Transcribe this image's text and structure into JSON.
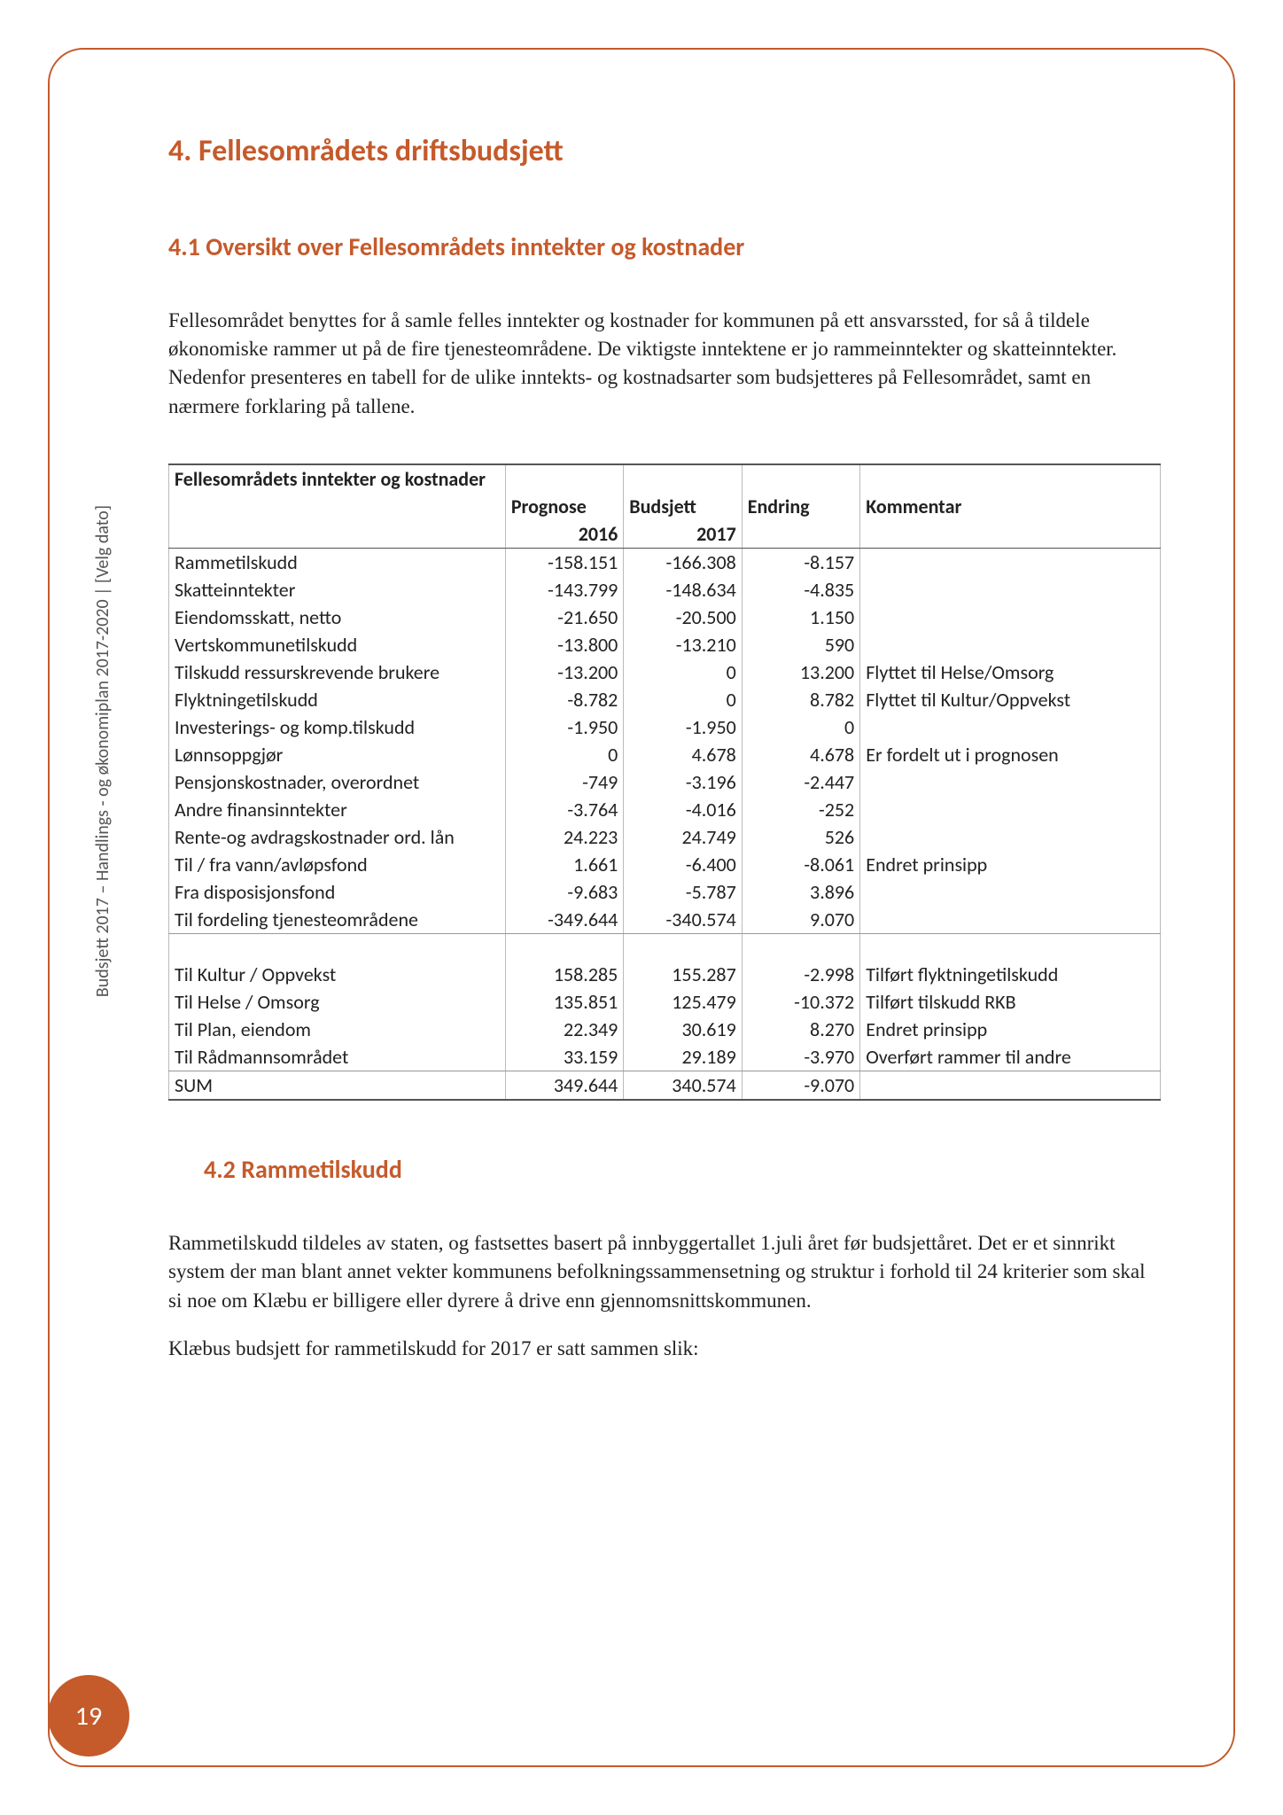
{
  "page": {
    "number": "19",
    "sidebar": "Budsjett 2017 – Handlings - og økonomiplan 2017-2020 |  [Velg dato]"
  },
  "heading1": "4. Fellesområdets driftsbudsjett",
  "heading2a": "4.1 Oversikt over Fellesområdets inntekter og kostnader",
  "para1": "Fellesområdet benyttes for å samle felles inntekter og kostnader for kommunen på ett ansvarssted, for så å tildele økonomiske rammer ut på de fire tjenesteområdene. De viktigste inntektene er jo rammeinntekter og skatteinntekter. Nedenfor presenteres en tabell for de ulike inntekts- og kostnadsarter som budsjetteres på Fellesområdet, samt en nærmere forklaring på tallene.",
  "table": {
    "title": "Fellesområdets inntekter og kostnader",
    "columns": {
      "prognose": "Prognose",
      "budsjett": "Budsjett",
      "endring": "Endring",
      "kommentar": "Kommentar"
    },
    "years": {
      "prognose": "2016",
      "budsjett": "2017"
    },
    "rows1": [
      {
        "label": "Rammetilskudd",
        "prognose": "-158.151",
        "budsjett": "-166.308",
        "endring": "-8.157",
        "kommentar": ""
      },
      {
        "label": "Skatteinntekter",
        "prognose": "-143.799",
        "budsjett": "-148.634",
        "endring": "-4.835",
        "kommentar": ""
      },
      {
        "label": "Eiendomsskatt, netto",
        "prognose": "-21.650",
        "budsjett": "-20.500",
        "endring": "1.150",
        "kommentar": ""
      },
      {
        "label": "Vertskommunetilskudd",
        "prognose": "-13.800",
        "budsjett": "-13.210",
        "endring": "590",
        "kommentar": ""
      },
      {
        "label": "Tilskudd ressurskrevende brukere",
        "prognose": "-13.200",
        "budsjett": "0",
        "endring": "13.200",
        "kommentar": "Flyttet til Helse/Omsorg"
      },
      {
        "label": "Flyktningetilskudd",
        "prognose": "-8.782",
        "budsjett": "0",
        "endring": "8.782",
        "kommentar": "Flyttet til Kultur/Oppvekst"
      },
      {
        "label": "Investerings- og komp.tilskudd",
        "prognose": "-1.950",
        "budsjett": "-1.950",
        "endring": "0",
        "kommentar": ""
      },
      {
        "label": "Lønnsoppgjør",
        "prognose": "0",
        "budsjett": "4.678",
        "endring": "4.678",
        "kommentar": "Er fordelt ut i prognosen"
      },
      {
        "label": "Pensjonskostnader, overordnet",
        "prognose": "-749",
        "budsjett": "-3.196",
        "endring": "-2.447",
        "kommentar": ""
      },
      {
        "label": "Andre finansinntekter",
        "prognose": "-3.764",
        "budsjett": "-4.016",
        "endring": "-252",
        "kommentar": ""
      },
      {
        "label": "Rente-og avdragskostnader ord. lån",
        "prognose": "24.223",
        "budsjett": "24.749",
        "endring": "526",
        "kommentar": ""
      },
      {
        "label": "Til / fra vann/avløpsfond",
        "prognose": "1.661",
        "budsjett": "-6.400",
        "endring": "-8.061",
        "kommentar": "Endret prinsipp"
      },
      {
        "label": "Fra disposisjonsfond",
        "prognose": "-9.683",
        "budsjett": "-5.787",
        "endring": "3.896",
        "kommentar": ""
      },
      {
        "label": "Til fordeling tjenesteområdene",
        "prognose": "-349.644",
        "budsjett": "-340.574",
        "endring": "9.070",
        "kommentar": ""
      }
    ],
    "rows2": [
      {
        "label": "Til Kultur / Oppvekst",
        "prognose": "158.285",
        "budsjett": "155.287",
        "endring": "-2.998",
        "kommentar": "Tilført flyktningetilskudd"
      },
      {
        "label": "Til Helse / Omsorg",
        "prognose": "135.851",
        "budsjett": "125.479",
        "endring": "-10.372",
        "kommentar": "Tilført tilskudd RKB"
      },
      {
        "label": "Til Plan, eiendom",
        "prognose": "22.349",
        "budsjett": "30.619",
        "endring": "8.270",
        "kommentar": "Endret prinsipp"
      },
      {
        "label": "Til Rådmannsområdet",
        "prognose": "33.159",
        "budsjett": "29.189",
        "endring": "-3.970",
        "kommentar": "Overført rammer til andre"
      }
    ],
    "sum": {
      "label": "SUM",
      "prognose": "349.644",
      "budsjett": "340.574",
      "endring": "-9.070",
      "kommentar": ""
    }
  },
  "heading2b": "4.2 Rammetilskudd",
  "para2": "Rammetilskudd tildeles av staten, og fastsettes basert på innbyggertallet 1.juli året før budsjettåret. Det er et sinnrikt system der man blant annet vekter kommunens befolkningssammensetning og struktur i forhold til 24 kriterier som skal si noe om Klæbu er billigere eller dyrere å drive enn gjennomsnittskommunen.",
  "para3": "Klæbus budsjett for rammetilskudd for 2017 er satt sammen slik:",
  "styling": {
    "accent_color": "#c55a2b",
    "body_text_color": "#222222",
    "table_border_color": "#bbbbbb",
    "heading_fontsize_pt": 26,
    "subheading_fontsize_pt": 21,
    "body_fontsize_pt": 17,
    "table_fontsize_pt": 16
  }
}
